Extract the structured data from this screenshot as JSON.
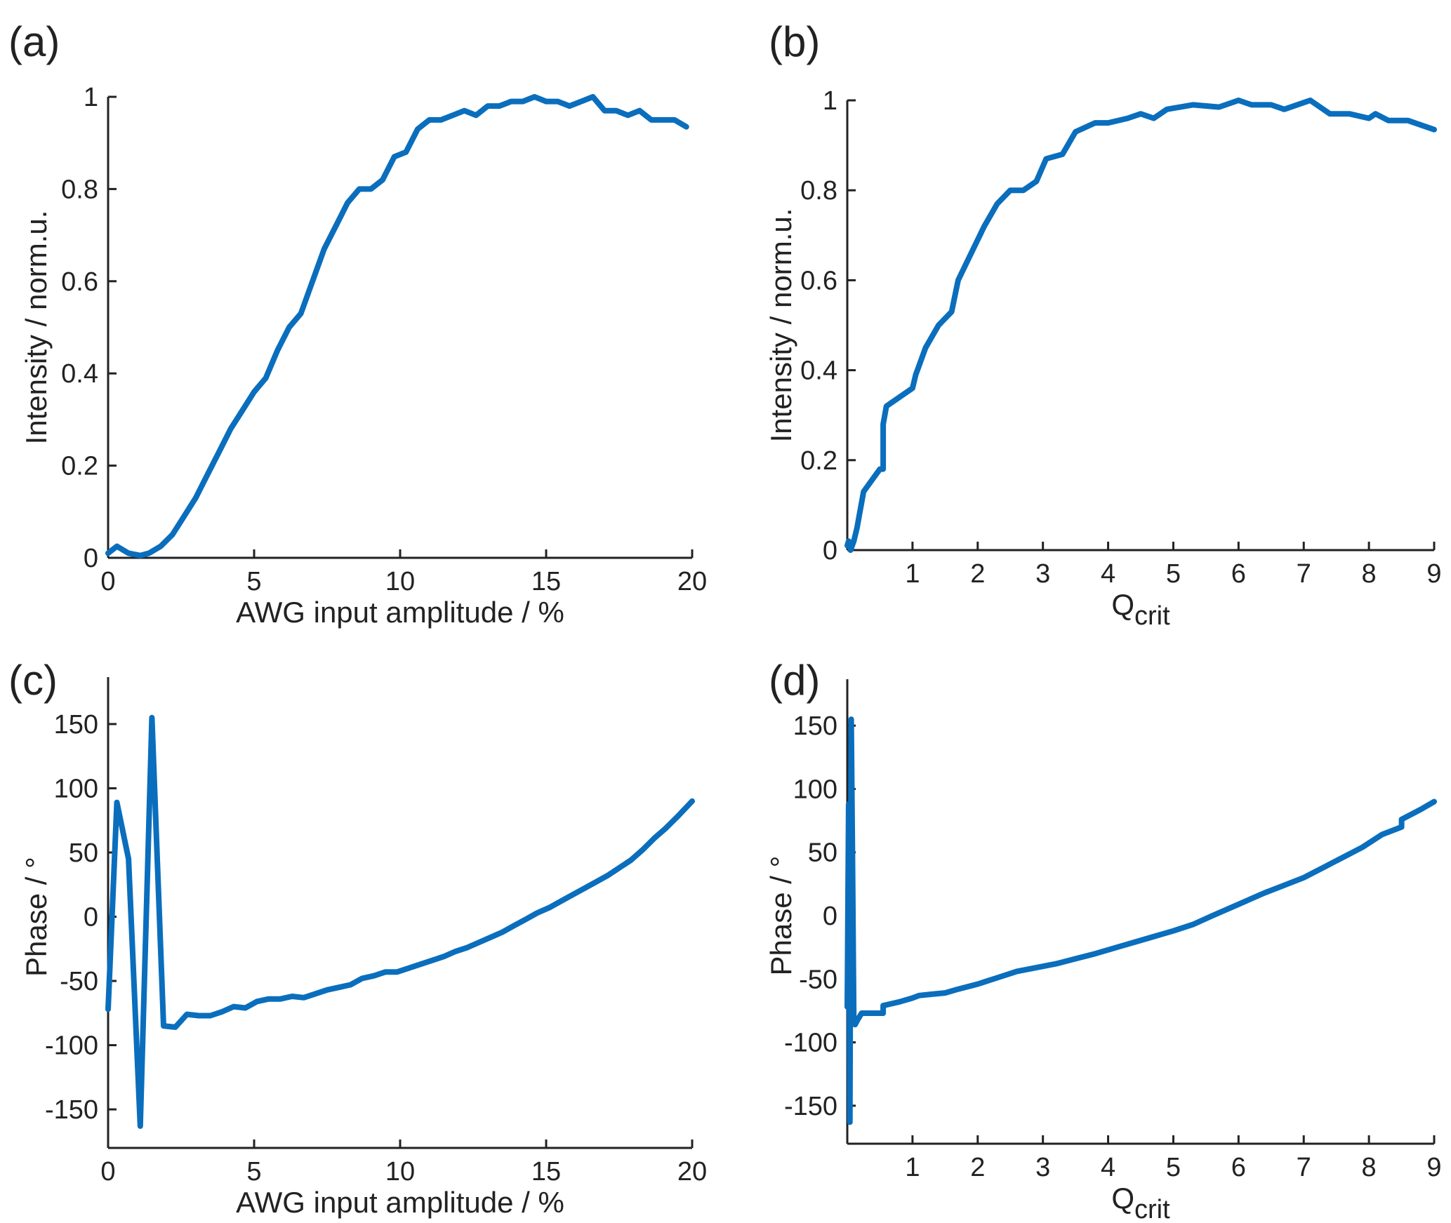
{
  "colors": {
    "series": "#0a6ebd",
    "axis": "#222222"
  },
  "chart_data": [
    {
      "type": "line",
      "panel_label": "(a)",
      "title": "",
      "xlabel": "AWG input amplitude / %",
      "ylabel": "Intensity / norm.u.",
      "xlabel_sub": "",
      "xlim": [
        0,
        20
      ],
      "ylim": [
        0,
        1
      ],
      "xticks": [
        0,
        5,
        10,
        15,
        20
      ],
      "xticklabels": [
        "0",
        "5",
        "10",
        "15",
        "20"
      ],
      "yticks": [
        0,
        0.2,
        0.4,
        0.6,
        0.8,
        1
      ],
      "yticklabels": [
        "0",
        "0.2",
        "0.4",
        "0.6",
        "0.8",
        "1"
      ],
      "grid": false,
      "series": [
        {
          "x": [
            0,
            0.3,
            0.7,
            1.1,
            1.4,
            1.8,
            2.2,
            2.6,
            3.0,
            3.4,
            3.8,
            4.2,
            4.6,
            5.0,
            5.4,
            5.8,
            6.2,
            6.6,
            7.0,
            7.4,
            7.8,
            8.2,
            8.6,
            9.0,
            9.4,
            9.8,
            10.2,
            10.6,
            11.0,
            11.4,
            11.8,
            12.2,
            12.6,
            13.0,
            13.4,
            13.8,
            14.2,
            14.6,
            15.0,
            15.4,
            15.8,
            16.2,
            16.6,
            17.0,
            17.4,
            17.8,
            18.2,
            18.6,
            19.0,
            19.4,
            19.8
          ],
          "y": [
            0.01,
            0.025,
            0.01,
            0.005,
            0.01,
            0.025,
            0.05,
            0.09,
            0.13,
            0.18,
            0.23,
            0.28,
            0.32,
            0.36,
            0.39,
            0.45,
            0.5,
            0.53,
            0.6,
            0.67,
            0.72,
            0.77,
            0.8,
            0.8,
            0.82,
            0.87,
            0.88,
            0.93,
            0.95,
            0.95,
            0.96,
            0.97,
            0.96,
            0.98,
            0.98,
            0.99,
            0.99,
            1.0,
            0.99,
            0.99,
            0.98,
            0.99,
            1.0,
            0.97,
            0.97,
            0.96,
            0.97,
            0.95,
            0.95,
            0.95,
            0.935
          ]
        }
      ]
    },
    {
      "type": "line",
      "panel_label": "(b)",
      "title": "",
      "xlabel": "Q",
      "xlabel_sub": "crit",
      "ylabel": "Intensity / norm.u.",
      "xlim": [
        0,
        9
      ],
      "ylim": [
        0,
        1
      ],
      "xticks": [
        1,
        2,
        3,
        4,
        5,
        6,
        7,
        8,
        9
      ],
      "xticklabels": [
        "1",
        "2",
        "3",
        "4",
        "5",
        "6",
        "7",
        "8",
        "9"
      ],
      "yticks": [
        0,
        0.2,
        0.4,
        0.6,
        0.8,
        1
      ],
      "yticklabels": [
        "0",
        "0.2",
        "0.4",
        "0.6",
        "0.8",
        "1"
      ],
      "grid": false,
      "series": [
        {
          "x": [
            0.0,
            0.02,
            0.05,
            0.1,
            0.15,
            0.25,
            0.5,
            0.55,
            0.55,
            0.6,
            1.0,
            1.05,
            1.1,
            1.2,
            1.4,
            1.6,
            1.7,
            1.9,
            2.1,
            2.3,
            2.5,
            2.7,
            2.9,
            3.05,
            3.3,
            3.5,
            3.8,
            4.0,
            4.3,
            4.5,
            4.7,
            4.9,
            5.3,
            5.7,
            6.0,
            6.2,
            6.5,
            6.7,
            7.1,
            7.4,
            7.7,
            8.0,
            8.1,
            8.3,
            8.6,
            9.0
          ],
          "y": [
            0.01,
            0.02,
            0.0,
            0.02,
            0.05,
            0.13,
            0.18,
            0.18,
            0.28,
            0.32,
            0.36,
            0.39,
            0.41,
            0.45,
            0.5,
            0.53,
            0.6,
            0.66,
            0.72,
            0.77,
            0.8,
            0.8,
            0.82,
            0.87,
            0.88,
            0.93,
            0.95,
            0.95,
            0.96,
            0.97,
            0.96,
            0.98,
            0.99,
            0.985,
            1.0,
            0.99,
            0.99,
            0.98,
            1.0,
            0.97,
            0.97,
            0.96,
            0.97,
            0.955,
            0.955,
            0.935
          ]
        }
      ]
    },
    {
      "type": "line",
      "panel_label": "(c)",
      "title": "",
      "xlabel": "AWG input amplitude / %",
      "xlabel_sub": "",
      "ylabel": "Phase / °",
      "xlim": [
        0,
        20
      ],
      "ylim": [
        -180,
        180
      ],
      "xticks": [
        0,
        5,
        10,
        15,
        20
      ],
      "xticklabels": [
        "0",
        "5",
        "10",
        "15",
        "20"
      ],
      "yticks": [
        -150,
        -100,
        -50,
        0,
        50,
        100,
        150
      ],
      "yticklabels": [
        "-150",
        "-100",
        "-50",
        "0",
        "50",
        "100",
        "150"
      ],
      "grid": false,
      "series": [
        {
          "x": [
            0,
            0.3,
            0.7,
            1.1,
            1.5,
            1.9,
            2.3,
            2.7,
            3.1,
            3.5,
            3.9,
            4.3,
            4.7,
            5.1,
            5.5,
            5.9,
            6.3,
            6.7,
            7.1,
            7.5,
            7.9,
            8.3,
            8.7,
            9.1,
            9.5,
            9.9,
            10.3,
            10.7,
            11.1,
            11.5,
            11.9,
            12.3,
            12.7,
            13.1,
            13.5,
            13.9,
            14.3,
            14.7,
            15.1,
            15.5,
            15.9,
            16.3,
            16.7,
            17.1,
            17.5,
            17.9,
            18.3,
            18.7,
            19.1,
            19.5,
            20.0
          ],
          "y": [
            -72,
            89,
            45,
            -163,
            155,
            -85,
            -86,
            -76,
            -77,
            -77,
            -74,
            -70,
            -71,
            -66,
            -64,
            -64,
            -62,
            -63,
            -60,
            -57,
            -55,
            -53,
            -48,
            -46,
            -43,
            -43,
            -40,
            -37,
            -34,
            -31,
            -27,
            -24,
            -20,
            -16,
            -12,
            -7,
            -2,
            3,
            7,
            12,
            17,
            22,
            27,
            32,
            38,
            44,
            52,
            61,
            69,
            78,
            90
          ]
        }
      ]
    },
    {
      "type": "line",
      "panel_label": "(d)",
      "title": "",
      "xlabel": "Q",
      "xlabel_sub": "crit",
      "ylabel": "Phase / °",
      "xlim": [
        0,
        9
      ],
      "ylim": [
        -180,
        180
      ],
      "xticks": [
        1,
        2,
        3,
        4,
        5,
        6,
        7,
        8,
        9
      ],
      "xticklabels": [
        "1",
        "2",
        "3",
        "4",
        "5",
        "6",
        "7",
        "8",
        "9"
      ],
      "yticks": [
        -150,
        -100,
        -50,
        0,
        50,
        100,
        150
      ],
      "yticklabels": [
        "-150",
        "-100",
        "-50",
        "0",
        "50",
        "100",
        "150"
      ],
      "grid": false,
      "series": [
        {
          "x": [
            0.0,
            0.02,
            0.04,
            0.06,
            0.08,
            0.1,
            0.12,
            0.16,
            0.22,
            0.55,
            0.55,
            0.8,
            1.0,
            1.1,
            1.3,
            1.5,
            1.7,
            2.0,
            2.3,
            2.6,
            3.0,
            3.2,
            3.5,
            3.8,
            4.2,
            4.6,
            5.0,
            5.3,
            5.6,
            6.0,
            6.4,
            6.7,
            7.0,
            7.3,
            7.6,
            7.9,
            8.2,
            8.5,
            8.5,
            8.8,
            9.0
          ],
          "y": [
            -72,
            88,
            -163,
            155,
            45,
            -85,
            -86,
            -82,
            -77,
            -77,
            -71,
            -68,
            -65,
            -63,
            -62,
            -61,
            -58,
            -54,
            -49,
            -44,
            -40,
            -38,
            -34,
            -30,
            -24,
            -18,
            -12,
            -7,
            0,
            9,
            18,
            24,
            30,
            38,
            46,
            54,
            64,
            70,
            76,
            84,
            90
          ]
        }
      ]
    }
  ]
}
